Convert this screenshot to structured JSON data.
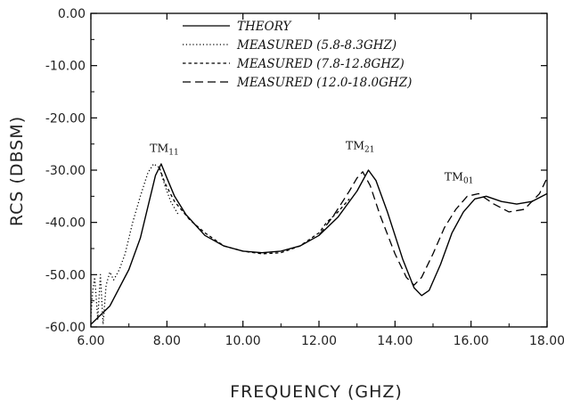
{
  "chart_data": {
    "type": "line",
    "title": "",
    "xlabel": "FREQUENCY (GHZ)",
    "ylabel": "RCS (DBSM)",
    "xlim": [
      6.0,
      18.0
    ],
    "ylim": [
      -60.0,
      0.0
    ],
    "x_ticks": [
      "6.00",
      "8.00",
      "10.00",
      "12.00",
      "14.00",
      "16.00",
      "18.00"
    ],
    "y_ticks": [
      "0.00",
      "-10.00",
      "-20.00",
      "-30.00",
      "-40.00",
      "-50.00",
      "-60.00"
    ],
    "grid": false,
    "legend_position": "top-center",
    "series": [
      {
        "name": "THEORY",
        "style": "solid",
        "points": [
          [
            6.0,
            -59.5
          ],
          [
            6.5,
            -56.0
          ],
          [
            7.0,
            -49.0
          ],
          [
            7.3,
            -43.0
          ],
          [
            7.5,
            -37.0
          ],
          [
            7.7,
            -31.0
          ],
          [
            7.85,
            -28.8
          ],
          [
            8.0,
            -31.5
          ],
          [
            8.2,
            -35.0
          ],
          [
            8.5,
            -38.5
          ],
          [
            9.0,
            -42.5
          ],
          [
            9.5,
            -44.5
          ],
          [
            10.0,
            -45.5
          ],
          [
            10.5,
            -45.8
          ],
          [
            11.0,
            -45.5
          ],
          [
            11.5,
            -44.5
          ],
          [
            12.0,
            -42.5
          ],
          [
            12.5,
            -39.0
          ],
          [
            13.0,
            -34.0
          ],
          [
            13.3,
            -30.0
          ],
          [
            13.5,
            -32.0
          ],
          [
            13.8,
            -38.0
          ],
          [
            14.2,
            -47.0
          ],
          [
            14.5,
            -52.5
          ],
          [
            14.7,
            -54.0
          ],
          [
            14.9,
            -53.0
          ],
          [
            15.2,
            -48.0
          ],
          [
            15.5,
            -42.0
          ],
          [
            15.8,
            -38.0
          ],
          [
            16.1,
            -35.5
          ],
          [
            16.4,
            -35.0
          ],
          [
            16.8,
            -36.0
          ],
          [
            17.2,
            -36.5
          ],
          [
            17.6,
            -36.0
          ],
          [
            18.0,
            -34.5
          ]
        ]
      },
      {
        "name": "MEASURED (5.8-8.3GHZ)",
        "style": "dotted",
        "points": [
          [
            6.0,
            -58.0
          ],
          [
            6.05,
            -53.0
          ],
          [
            6.1,
            -50.5
          ],
          [
            6.18,
            -58.5
          ],
          [
            6.25,
            -50.0
          ],
          [
            6.32,
            -59.5
          ],
          [
            6.4,
            -52.0
          ],
          [
            6.5,
            -49.5
          ],
          [
            6.6,
            -51.0
          ],
          [
            6.75,
            -49.0
          ],
          [
            6.9,
            -46.0
          ],
          [
            7.1,
            -40.0
          ],
          [
            7.3,
            -35.0
          ],
          [
            7.5,
            -30.5
          ],
          [
            7.65,
            -28.8
          ],
          [
            7.8,
            -29.5
          ],
          [
            7.95,
            -33.0
          ],
          [
            8.1,
            -36.0
          ],
          [
            8.3,
            -38.5
          ]
        ]
      },
      {
        "name": "MEASURED (7.8-12.8GHZ)",
        "style": "short-dash",
        "points": [
          [
            7.8,
            -29.5
          ],
          [
            7.95,
            -32.5
          ],
          [
            8.2,
            -36.0
          ],
          [
            8.6,
            -39.5
          ],
          [
            9.0,
            -42.0
          ],
          [
            9.5,
            -44.5
          ],
          [
            10.0,
            -45.5
          ],
          [
            10.5,
            -46.0
          ],
          [
            11.0,
            -45.8
          ],
          [
            11.5,
            -44.5
          ],
          [
            12.0,
            -42.0
          ],
          [
            12.2,
            -40.0
          ],
          [
            12.5,
            -38.0
          ],
          [
            12.8,
            -35.5
          ]
        ]
      },
      {
        "name": "MEASURED (12.0-18.0GHZ)",
        "style": "long-dash",
        "points": [
          [
            12.0,
            -42.5
          ],
          [
            12.4,
            -38.5
          ],
          [
            12.8,
            -34.0
          ],
          [
            13.0,
            -31.5
          ],
          [
            13.15,
            -30.3
          ],
          [
            13.35,
            -33.0
          ],
          [
            13.6,
            -38.5
          ],
          [
            14.0,
            -46.0
          ],
          [
            14.3,
            -50.5
          ],
          [
            14.5,
            -52.0
          ],
          [
            14.7,
            -50.5
          ],
          [
            15.0,
            -46.0
          ],
          [
            15.3,
            -41.0
          ],
          [
            15.6,
            -37.5
          ],
          [
            15.9,
            -35.0
          ],
          [
            16.2,
            -34.5
          ],
          [
            16.6,
            -36.5
          ],
          [
            17.0,
            -38.0
          ],
          [
            17.4,
            -37.5
          ],
          [
            17.8,
            -34.5
          ],
          [
            18.0,
            -31.5
          ]
        ]
      }
    ],
    "annotations": [
      {
        "text": "TM",
        "sub": "11",
        "x": 7.55,
        "y": -26.5
      },
      {
        "text": "TM",
        "sub": "21",
        "x": 12.7,
        "y": -26.0
      },
      {
        "text": "TM",
        "sub": "01",
        "x": 15.3,
        "y": -32.0
      }
    ],
    "colors": {
      "line": "#000000",
      "text": "#222222"
    }
  }
}
